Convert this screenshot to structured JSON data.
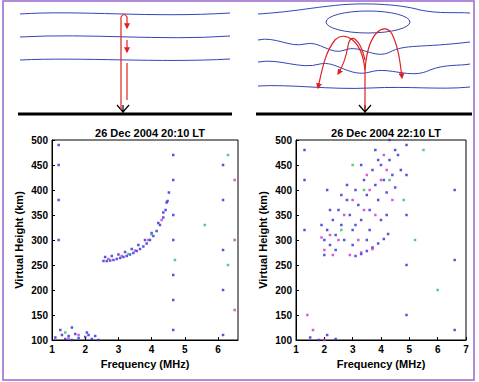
{
  "chart_data": [
    {
      "type": "scatter",
      "title": "26 Dec 2004 20:10 LT",
      "x_label": "Frequency (MHz)",
      "y_label": "Virtual Height (km)",
      "xlim": [
        1,
        6.6
      ],
      "xticks": [
        1,
        2,
        3,
        4,
        5,
        6
      ],
      "ylim": [
        100,
        500
      ],
      "yticks": [
        100,
        150,
        200,
        250,
        300,
        350,
        400,
        450,
        500
      ],
      "grid": false,
      "marker": "square",
      "series": [
        {
          "color": "#2b2bd6",
          "values": [
            [
              2.55,
              258
            ],
            [
              2.65,
              258
            ],
            [
              2.75,
              259
            ],
            [
              2.85,
              260
            ],
            [
              2.95,
              262
            ],
            [
              3.05,
              264
            ],
            [
              3.15,
              266
            ],
            [
              3.25,
              268
            ],
            [
              3.35,
              271
            ],
            [
              3.45,
              274
            ],
            [
              3.55,
              278
            ],
            [
              3.65,
              282
            ],
            [
              3.75,
              287
            ],
            [
              3.85,
              293
            ],
            [
              3.95,
              300
            ],
            [
              4.05,
              308
            ],
            [
              4.15,
              318
            ],
            [
              4.25,
              330
            ],
            [
              4.35,
              345
            ],
            [
              4.42,
              360
            ],
            [
              4.48,
              378
            ],
            [
              4.52,
              395
            ],
            [
              2.6,
              266
            ],
            [
              2.8,
              268
            ],
            [
              3.0,
              271
            ],
            [
              3.2,
              276
            ],
            [
              3.4,
              282
            ],
            [
              3.6,
              290
            ],
            [
              3.8,
              300
            ],
            [
              4.0,
              314
            ],
            [
              4.2,
              334
            ],
            [
              4.35,
              355
            ],
            [
              4.45,
              375
            ],
            [
              1.1,
              105
            ],
            [
              1.2,
              98
            ],
            [
              1.3,
              110
            ],
            [
              1.4,
              102
            ],
            [
              1.5,
              108
            ],
            [
              1.6,
              100
            ],
            [
              1.7,
              112
            ],
            [
              1.8,
              104
            ],
            [
              1.9,
              99
            ],
            [
              2.0,
              106
            ],
            [
              2.1,
              110
            ],
            [
              2.2,
              102
            ],
            [
              2.3,
              108
            ],
            [
              2.4,
              100
            ],
            [
              1.25,
              120
            ],
            [
              1.6,
              125
            ],
            [
              2.05,
              115
            ],
            [
              4.65,
              120
            ],
            [
              4.65,
              180
            ],
            [
              4.65,
              230
            ],
            [
              4.65,
              300
            ],
            [
              4.65,
              350
            ],
            [
              4.65,
              420
            ],
            [
              4.65,
              470
            ],
            [
              6.15,
              110
            ],
            [
              6.15,
              200
            ],
            [
              6.15,
              280
            ],
            [
              6.15,
              380
            ],
            [
              6.15,
              450
            ],
            [
              1.2,
              300
            ],
            [
              1.2,
              380
            ],
            [
              1.2,
              450
            ],
            [
              1.2,
              490
            ]
          ]
        },
        {
          "color": "#cc33cc",
          "values": [
            [
              2.7,
              262
            ],
            [
              3.1,
              268
            ],
            [
              3.5,
              279
            ],
            [
              3.9,
              300
            ],
            [
              4.3,
              340
            ],
            [
              1.5,
              103
            ],
            [
              2.2,
              98
            ],
            [
              1.8,
              110
            ],
            [
              6.5,
              160
            ],
            [
              6.5,
              300
            ],
            [
              6.5,
              420
            ]
          ]
        },
        {
          "color": "#33bb66",
          "values": [
            [
              4.0,
              311
            ],
            [
              3.3,
              272
            ],
            [
              5.6,
              330
            ],
            [
              6.3,
              470
            ],
            [
              6.3,
              250
            ],
            [
              1.4,
              115
            ],
            [
              4.7,
              260
            ]
          ]
        }
      ]
    },
    {
      "type": "scatter",
      "title": "26 Dec 2004 22:10 LT",
      "x_label": "Frequency (MHz)",
      "y_label": "Virtual Height (km)",
      "xlim": [
        1,
        7
      ],
      "xticks": [
        1,
        2,
        3,
        4,
        5,
        6,
        7
      ],
      "ylim": [
        100,
        500
      ],
      "yticks": [
        100,
        150,
        200,
        250,
        300,
        350,
        400,
        450,
        500
      ],
      "grid": false,
      "marker": "square",
      "series": [
        {
          "color": "#2b2bd6",
          "values": [
            [
              2.0,
              300
            ],
            [
              2.1,
              320
            ],
            [
              2.2,
              290
            ],
            [
              2.3,
              340
            ],
            [
              2.4,
              310
            ],
            [
              2.5,
              360
            ],
            [
              2.6,
              330
            ],
            [
              2.7,
              300
            ],
            [
              2.8,
              380
            ],
            [
              2.9,
              350
            ],
            [
              3.0,
              320
            ],
            [
              3.1,
              400
            ],
            [
              3.2,
              370
            ],
            [
              3.3,
              340
            ],
            [
              3.4,
              420
            ],
            [
              3.5,
              390
            ],
            [
              3.6,
              360
            ],
            [
              3.7,
              440
            ],
            [
              3.8,
              410
            ],
            [
              3.9,
              380
            ],
            [
              4.0,
              450
            ],
            [
              4.1,
              420
            ],
            [
              4.2,
              395
            ],
            [
              4.3,
              460
            ],
            [
              4.4,
              430
            ],
            [
              4.5,
              405
            ],
            [
              4.6,
              470
            ],
            [
              4.2,
              350
            ],
            [
              3.6,
              320
            ],
            [
              3.0,
              290
            ],
            [
              2.4,
              280
            ],
            [
              3.9,
              460
            ],
            [
              4.5,
              480
            ],
            [
              3.3,
              450
            ],
            [
              2.8,
              410
            ],
            [
              2.2,
              360
            ],
            [
              2.0,
              270
            ],
            [
              1.9,
              330
            ],
            [
              4.7,
              440
            ],
            [
              4.0,
              340
            ],
            [
              3.5,
              300
            ],
            [
              2.6,
              390
            ],
            [
              3.8,
              480
            ],
            [
              4.3,
              500
            ],
            [
              2.1,
              400
            ],
            [
              3.1,
              330
            ],
            [
              3.1,
              268
            ],
            [
              3.3,
              272
            ],
            [
              3.5,
              278
            ],
            [
              3.7,
              285
            ],
            [
              3.9,
              293
            ],
            [
              4.1,
              302
            ],
            [
              4.25,
              312
            ],
            [
              4.9,
              150
            ],
            [
              4.9,
              250
            ],
            [
              4.9,
              350
            ],
            [
              4.9,
              430
            ],
            [
              4.9,
              490
            ],
            [
              6.6,
              120
            ],
            [
              6.6,
              260
            ],
            [
              6.6,
              400
            ],
            [
              1.3,
              320
            ],
            [
              1.3,
              420
            ],
            [
              1.3,
              480
            ],
            [
              1.5,
              105
            ],
            [
              1.8,
              100
            ],
            [
              2.1,
              110
            ],
            [
              2.4,
              102
            ]
          ]
        },
        {
          "color": "#cc33cc",
          "values": [
            [
              2.0,
              280
            ],
            [
              2.2,
              310
            ],
            [
              2.5,
              300
            ],
            [
              2.7,
              350
            ],
            [
              3.0,
              380
            ],
            [
              3.2,
              300
            ],
            [
              3.4,
              360
            ],
            [
              3.6,
              400
            ],
            [
              3.8,
              350
            ],
            [
              4.0,
              420
            ],
            [
              4.2,
              440
            ],
            [
              4.4,
              380
            ],
            [
              2.3,
              270
            ],
            [
              2.9,
              270
            ],
            [
              3.5,
              430
            ],
            [
              4.1,
              470
            ],
            [
              1.9,
              305
            ],
            [
              1.4,
              150
            ],
            [
              1.6,
              120
            ],
            [
              2.0,
              100
            ],
            [
              3.3,
              275
            ],
            [
              3.7,
              282
            ]
          ]
        },
        {
          "color": "#33bb66",
          "values": [
            [
              2.6,
              320
            ],
            [
              3.4,
              400
            ],
            [
              4.3,
              420
            ],
            [
              4.8,
              380
            ],
            [
              5.2,
              300
            ],
            [
              3.0,
              450
            ],
            [
              6.0,
              200
            ],
            [
              5.5,
              480
            ]
          ]
        }
      ]
    }
  ]
}
